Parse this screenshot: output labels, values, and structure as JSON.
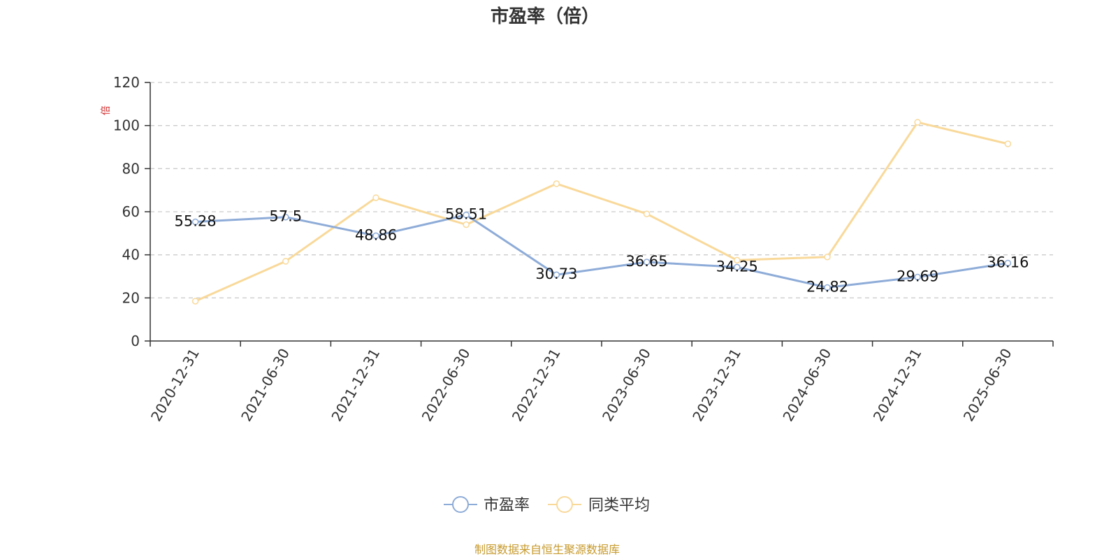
{
  "chart_data": {
    "type": "line",
    "title": "市盈率（倍）",
    "unit": "倍",
    "categories": [
      "2020-12-31",
      "2021-06-30",
      "2021-12-31",
      "2022-06-30",
      "2022-12-31",
      "2023-06-30",
      "2023-12-31",
      "2024-06-30",
      "2024-12-31",
      "2025-06-30"
    ],
    "ylim": [
      0,
      120
    ],
    "yticks": [
      0,
      20,
      40,
      60,
      80,
      100,
      120
    ],
    "grid": true,
    "legend_position": "bottom-center",
    "series": [
      {
        "name": "市盈率",
        "color": "#8eacd8",
        "values": [
          55.28,
          57.5,
          48.86,
          58.51,
          30.73,
          36.65,
          34.25,
          24.82,
          29.69,
          36.16
        ],
        "labels": [
          "55.28",
          "57.5",
          "48.86",
          "58.51",
          "30.73",
          "36.65",
          "34.25",
          "24.82",
          "29.69",
          "36.16"
        ]
      },
      {
        "name": "同类平均",
        "color": "#f9d99a",
        "values": [
          18.5,
          37.0,
          66.5,
          54.0,
          73.0,
          59.0,
          37.5,
          39.0,
          101.5,
          91.5
        ]
      }
    ]
  },
  "source": "制图数据来自恒生聚源数据库"
}
